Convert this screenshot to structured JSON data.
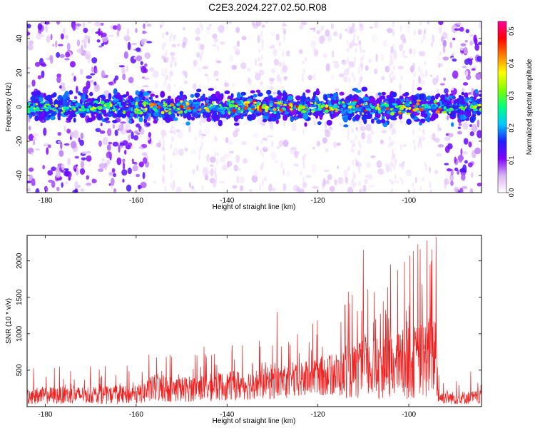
{
  "title": "C2E3.2024.227.02.50.R08",
  "chart_data": [
    {
      "type": "heatmap",
      "title": "C2E3.2024.227.02.50.R08",
      "xlabel": "Height of straight line (km)",
      "ylabel": "Frequency (Hz)",
      "xlim": [
        -184,
        -84
      ],
      "ylim": [
        -50,
        50
      ],
      "x_ticks": [
        -180,
        -160,
        -140,
        -120,
        -100
      ],
      "y_ticks": [
        -40,
        -20,
        0,
        20,
        40
      ],
      "colorbar": {
        "label": "Normalized spectral amplitude",
        "range": [
          0.0,
          0.53
        ],
        "ticks": [
          "0.0",
          "0.1",
          "0.2",
          "0.3",
          "0.4",
          "0.5"
        ],
        "colormap": [
          "#ffffff",
          "#d8b4f4",
          "#8000ff",
          "#2020ff",
          "#00c8ff",
          "#00ff80",
          "#80ff00",
          "#ffff00",
          "#ff8000",
          "#ff0000",
          "#ff00a0"
        ]
      },
      "features": {
        "central_band_center_hz": 0,
        "central_band_halfwidth_hz": 6,
        "dense_noise_regions_km": [
          [
            -184,
            -157
          ],
          [
            -93,
            -84
          ]
        ],
        "peak_amplitude": 0.5
      }
    },
    {
      "type": "line",
      "xlabel": "Height of straight line (km)",
      "ylabel": "SNR (10 * v/v)",
      "xlim": [
        -184,
        -84
      ],
      "ylim": [
        0,
        2350
      ],
      "x_ticks": [
        -180,
        -160,
        -140,
        -120,
        -100
      ],
      "y_ticks": [
        500,
        1000,
        1500,
        2000
      ],
      "color": "#ee2020",
      "envelope": {
        "x": [
          -184,
          -170,
          -160,
          -156,
          -150,
          -140,
          -130,
          -125,
          -120,
          -115,
          -110,
          -105,
          -100,
          -96,
          -94,
          -93.5,
          -90,
          -84
        ],
        "max": [
          560,
          560,
          600,
          800,
          780,
          900,
          1000,
          1050,
          1200,
          1400,
          2050,
          1650,
          2150,
          2270,
          2300,
          620,
          560,
          550
        ],
        "min": [
          30,
          40,
          30,
          60,
          60,
          80,
          100,
          100,
          150,
          120,
          100,
          100,
          100,
          120,
          150,
          40,
          30,
          30
        ],
        "typical": [
          180,
          190,
          190,
          300,
          280,
          330,
          380,
          400,
          480,
          520,
          600,
          620,
          720,
          800,
          900,
          150,
          140,
          150
        ]
      },
      "notable_peaks": [
        {
          "x": -129,
          "y": 1300
        },
        {
          "x": -114,
          "y": 1400
        },
        {
          "x": -110,
          "y": 2150
        },
        {
          "x": -104,
          "y": 1950
        },
        {
          "x": -98,
          "y": 2230
        },
        {
          "x": -96,
          "y": 2280
        },
        {
          "x": -94,
          "y": 2330
        }
      ]
    }
  ]
}
